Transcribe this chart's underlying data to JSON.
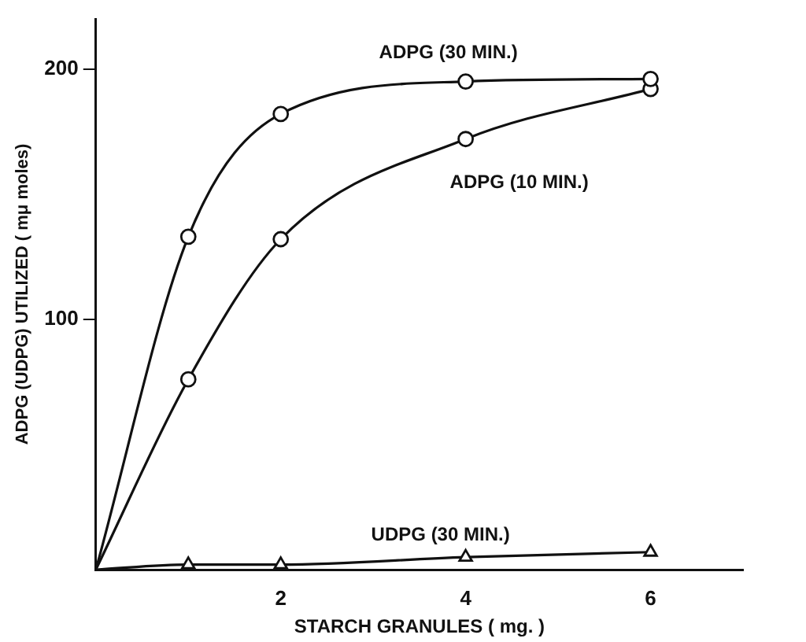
{
  "chart_data": {
    "type": "line",
    "xlabel": "STARCH GRANULES ( mg. )",
    "ylabel": "ADPG (UDPG) UTILIZED ( mμ moles)",
    "x": [
      0,
      1,
      2,
      4,
      6
    ],
    "xlim": [
      0,
      7
    ],
    "xticks": [
      2,
      4,
      6
    ],
    "ylim": [
      0,
      220
    ],
    "yticks": [
      100,
      200
    ],
    "grid": false,
    "legend": false,
    "series": [
      {
        "name": "ADPG (30 MIN.)",
        "color": "#111111",
        "marker": "circle",
        "values": [
          0,
          133,
          182,
          195,
          196
        ]
      },
      {
        "name": "ADPG (10 MIN.)",
        "color": "#111111",
        "marker": "circle",
        "values": [
          0,
          76,
          132,
          172,
          192
        ]
      },
      {
        "name": "UDPG (30 MIN.)",
        "color": "#111111",
        "marker": "triangle",
        "values": [
          0,
          2,
          2,
          5,
          7
        ]
      }
    ]
  }
}
